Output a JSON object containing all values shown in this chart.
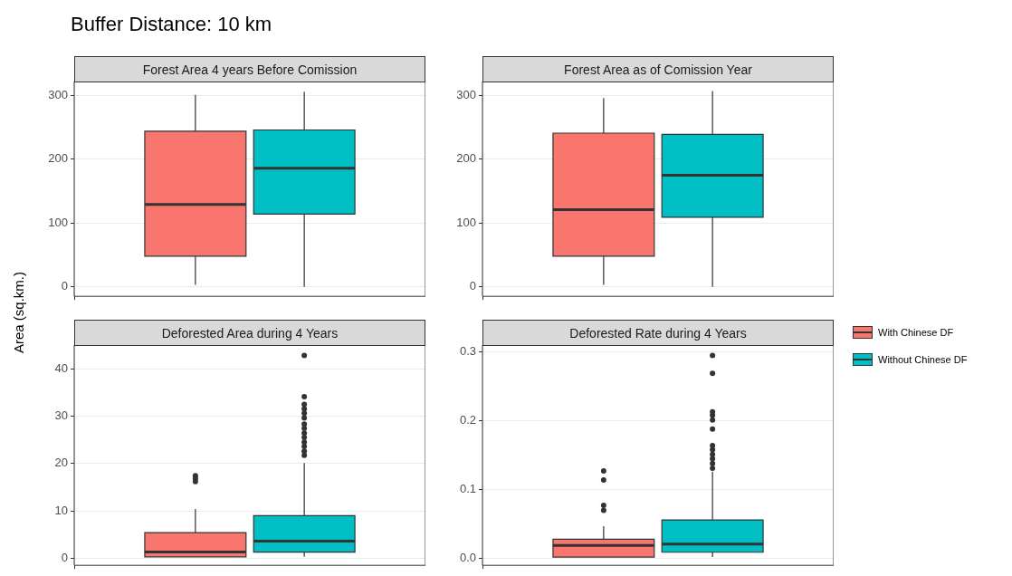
{
  "chart_data": [
    {
      "type": "box",
      "title": "Forest Area 4 years Before Comission",
      "annotations": [
        "Buffer Distance: 10 km"
      ],
      "ylabel": "Area (sq.km.)",
      "categories": [
        null
      ],
      "ylim": [
        -15,
        322
      ],
      "yticks": [
        0,
        100,
        200,
        300
      ],
      "grid": true,
      "tick_labels": "y",
      "series": [
        {
          "color": "#f8766d",
          "boxes": [
            {
              "low": 3,
              "q1": 48,
              "median": 129,
              "q3": 244,
              "high": 301
            }
          ]
        },
        {
          "color": "#00bfc4",
          "boxes": [
            {
              "low": 0,
              "q1": 114,
              "median": 186,
              "q3": 246,
              "high": 306
            }
          ]
        }
      ]
    },
    {
      "type": "box",
      "title": "Forest Area as of Comission Year",
      "categories": [
        null
      ],
      "ylim": [
        -15,
        322
      ],
      "yticks": [
        0,
        100,
        200,
        300
      ],
      "grid": true,
      "tick_labels": "y",
      "series": [
        {
          "color": "#f8766d",
          "boxes": [
            {
              "low": 3,
              "q1": 48,
              "median": 121,
              "q3": 241,
              "high": 296
            }
          ]
        },
        {
          "color": "#00bfc4",
          "boxes": [
            {
              "low": 0,
              "q1": 109,
              "median": 175,
              "q3": 239,
              "high": 307
            }
          ]
        }
      ]
    },
    {
      "type": "box",
      "title": "Deforested Area during 4 Years",
      "categories": [
        null
      ],
      "ylim": [
        -1.5,
        45
      ],
      "yticks": [
        0,
        10,
        20,
        30,
        40
      ],
      "grid": true,
      "tick_labels": "y",
      "series": [
        {
          "color": "#f8766d",
          "boxes": [
            {
              "low": 0.3,
              "q1": 0.3,
              "median": 1.3,
              "q3": 5.4,
              "high": 10.4,
              "outliers": [
                16.2,
                16.8,
                17.4
              ]
            }
          ]
        },
        {
          "color": "#00bfc4",
          "boxes": [
            {
              "low": 0.3,
              "q1": 1.3,
              "median": 3.6,
              "q3": 9.0,
              "high": 20.1,
              "outliers": [
                21.7,
                22.6,
                23.6,
                24.5,
                25.5,
                26.4,
                27.4,
                28.3,
                29.6,
                30.6,
                31.5,
                32.5,
                34.1,
                42.8
              ]
            }
          ]
        }
      ]
    },
    {
      "type": "box",
      "title": "Deforested Rate during 4 Years",
      "categories": [
        null
      ],
      "ylim": [
        -0.01,
        0.31
      ],
      "yticks": [
        {
          "value": 0,
          "label": "0.0"
        },
        0.1,
        0.2,
        0.3
      ],
      "grid": true,
      "tick_labels": "y",
      "legend": "right",
      "series": [
        {
          "name": "With Chinese DF",
          "color": "#f8766d",
          "boxes": [
            {
              "low": 0.002,
              "q1": 0.002,
              "median": 0.019,
              "q3": 0.028,
              "high": 0.047,
              "outliers": [
                0.07,
                0.077,
                0.114,
                0.127
              ]
            }
          ]
        },
        {
          "name": "Without Chinese DF",
          "color": "#00bfc4",
          "boxes": [
            {
              "low": 0.002,
              "q1": 0.009,
              "median": 0.021,
              "q3": 0.056,
              "high": 0.126,
              "outliers": [
                0.131,
                0.138,
                0.145,
                0.151,
                0.158,
                0.164,
                0.188,
                0.201,
                0.208,
                0.213,
                0.269,
                0.295
              ]
            }
          ]
        }
      ]
    }
  ]
}
